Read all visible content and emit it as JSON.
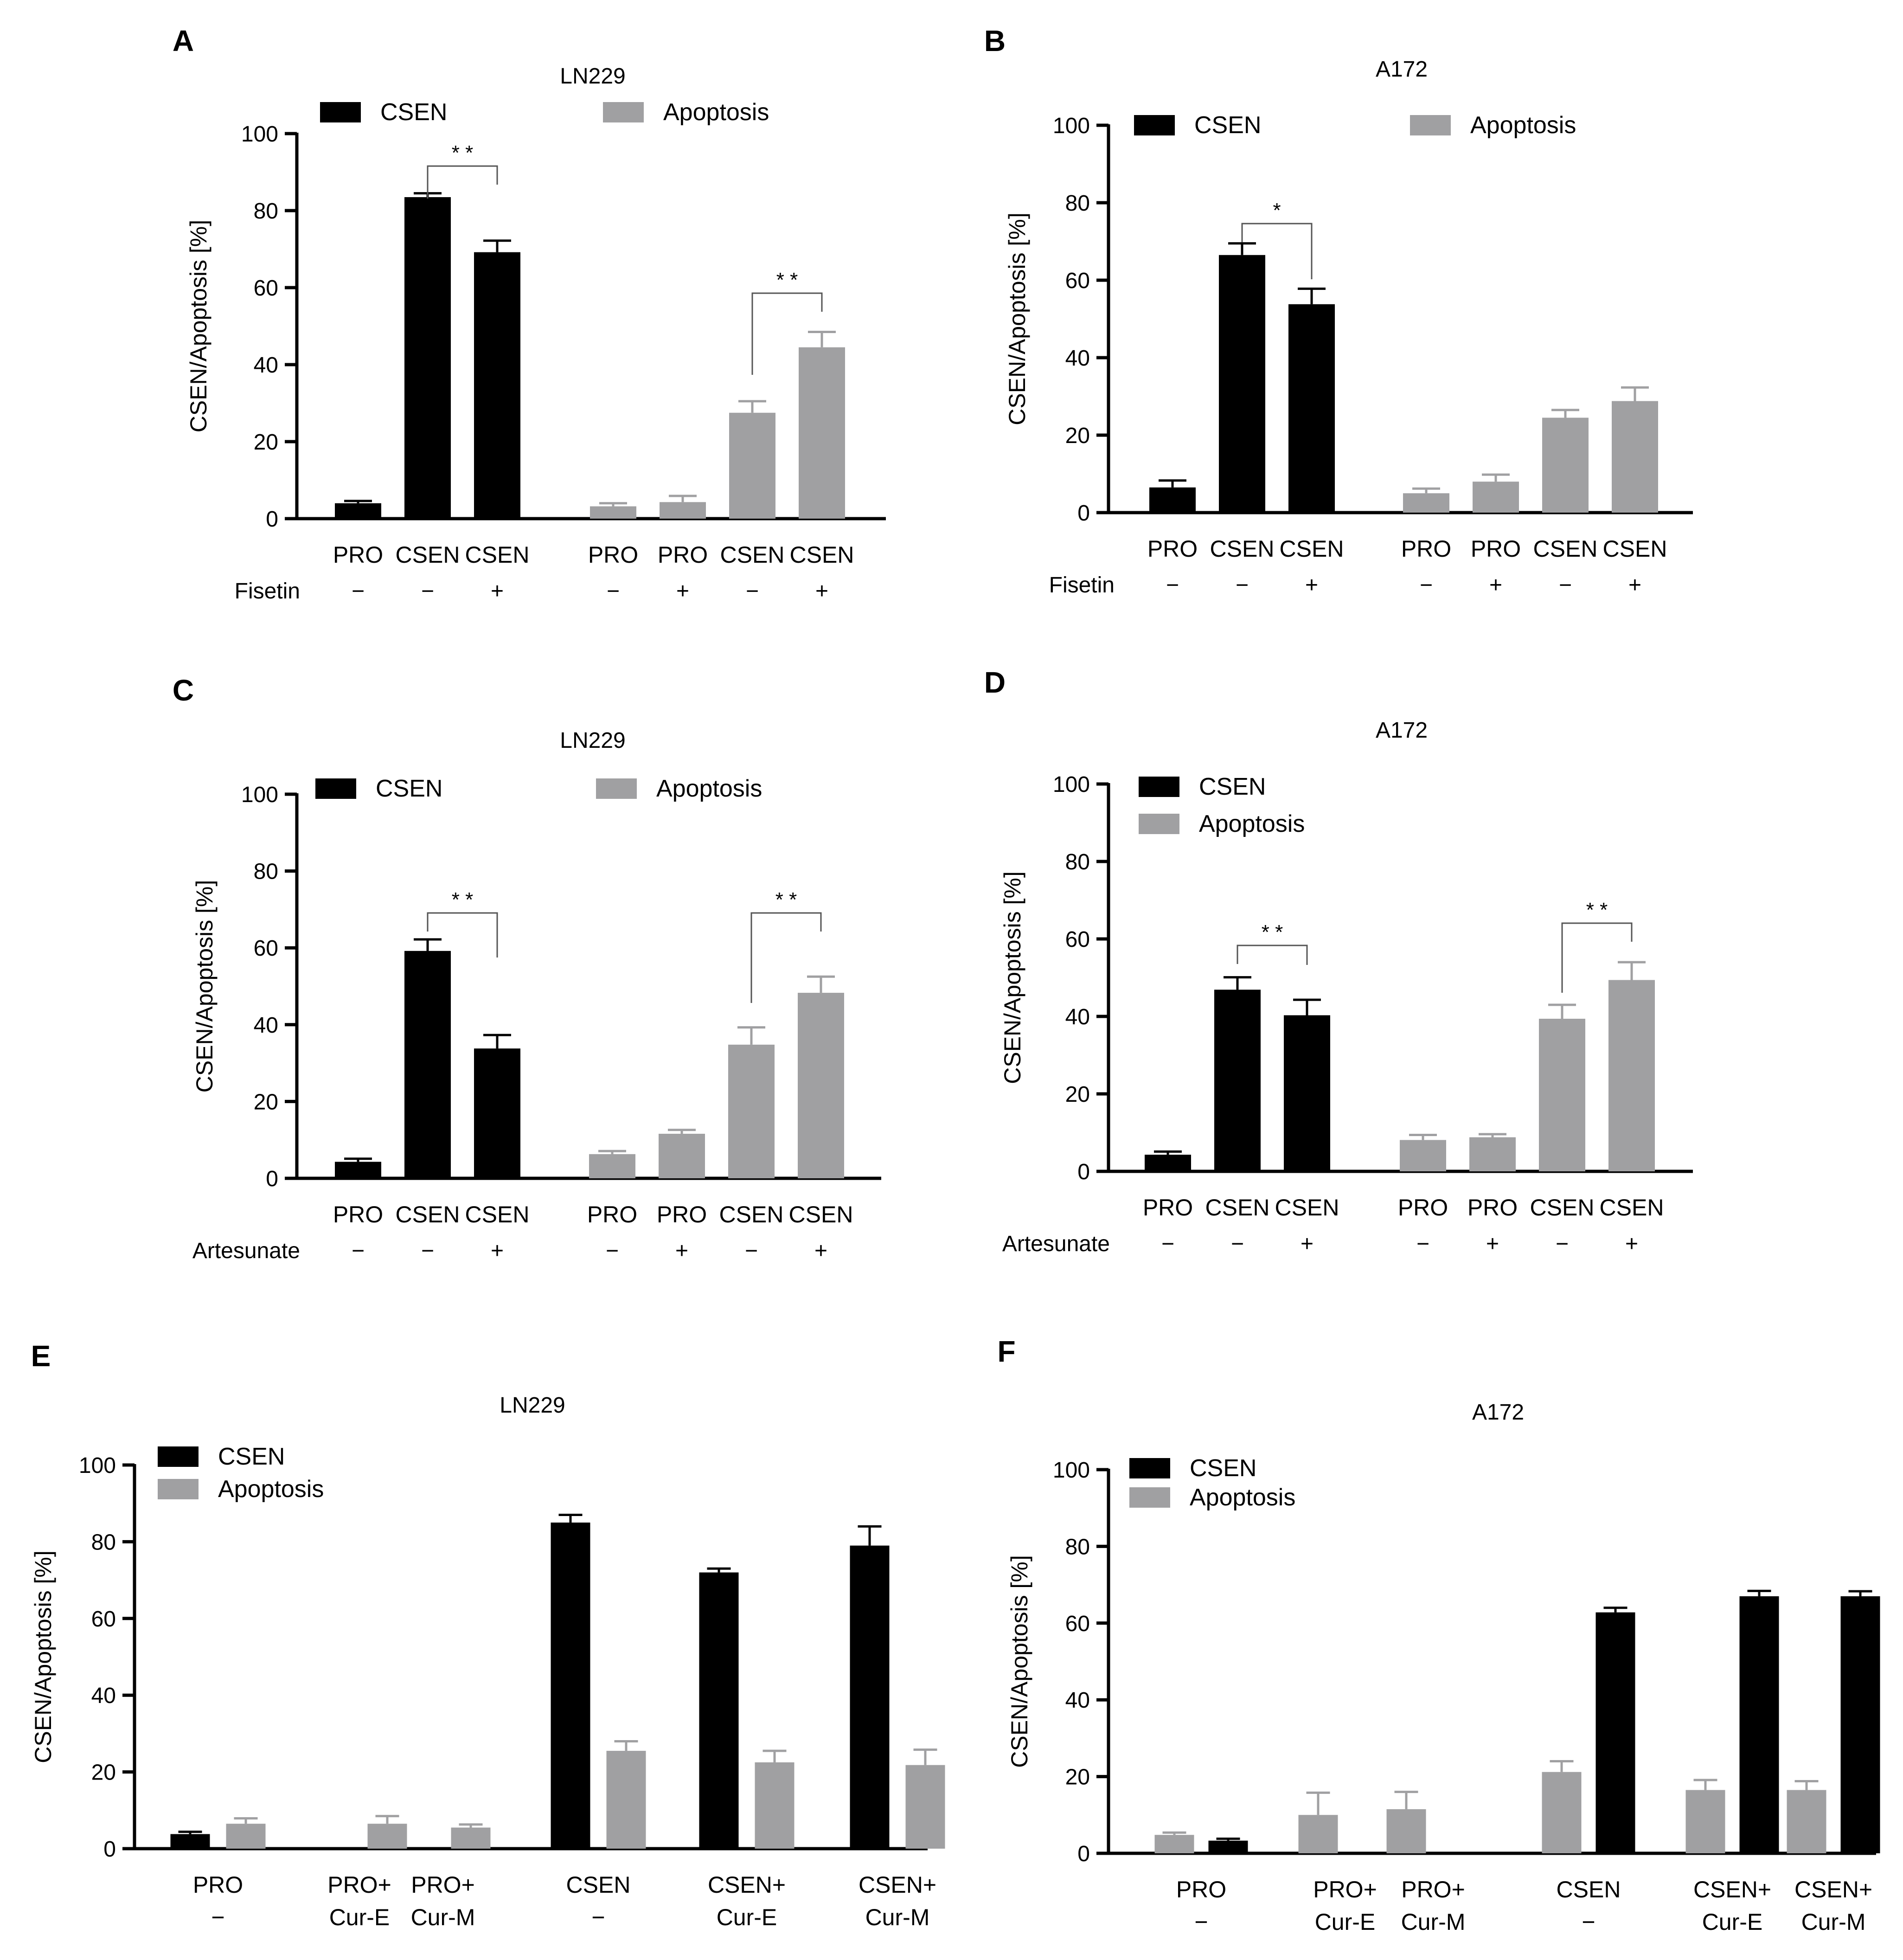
{
  "colors": {
    "csen": "#000000",
    "apoptosis": "#a0a0a2",
    "axis": "#000000",
    "bracket": "#555555"
  },
  "legend": {
    "csen": "CSEN",
    "apoptosis": "Apoptosis"
  },
  "chart_data": [
    {
      "panel": "A",
      "title": "LN229",
      "type": "bar",
      "ylabel": "CSEN/Apoptosis [%]",
      "ylim": [
        0,
        100
      ],
      "yticks": [
        0,
        20,
        40,
        60,
        80,
        100
      ],
      "legend_position": "top",
      "treatment_label": "Fisetin",
      "groups": [
        {
          "series": "CSEN",
          "bars": [
            {
              "category": "PRO",
              "treatment": "−",
              "value": 4,
              "error": 0.6
            },
            {
              "category": "CSEN",
              "treatment": "−",
              "value": 83.5,
              "error": 1
            },
            {
              "category": "CSEN",
              "treatment": "+",
              "value": 69.2,
              "error": 3
            }
          ]
        },
        {
          "series": "Apoptosis",
          "bars": [
            {
              "category": "PRO",
              "treatment": "−",
              "value": 3.2,
              "error": 0.8
            },
            {
              "category": "PRO",
              "treatment": "+",
              "value": 4.3,
              "error": 1.6
            },
            {
              "category": "CSEN",
              "treatment": "−",
              "value": 27.5,
              "error": 3
            },
            {
              "category": "CSEN",
              "treatment": "+",
              "value": 44.5,
              "error": 4
            }
          ]
        }
      ],
      "significance": [
        {
          "label": "* *",
          "from": [
            0,
            1
          ],
          "to": [
            0,
            2
          ]
        },
        {
          "label": "* *",
          "from": [
            1,
            2
          ],
          "to": [
            1,
            3
          ]
        }
      ]
    },
    {
      "panel": "B",
      "title": "A172",
      "type": "bar",
      "ylabel": "CSEN/Apoptosis [%]",
      "ylim": [
        0,
        100
      ],
      "yticks": [
        0,
        20,
        40,
        60,
        80,
        100
      ],
      "legend_position": "top",
      "treatment_label": "Fisetin",
      "groups": [
        {
          "series": "CSEN",
          "bars": [
            {
              "category": "PRO",
              "treatment": "−",
              "value": 6.5,
              "error": 1.8
            },
            {
              "category": "CSEN",
              "treatment": "−",
              "value": 66.5,
              "error": 3
            },
            {
              "category": "CSEN",
              "treatment": "+",
              "value": 53.8,
              "error": 4
            }
          ]
        },
        {
          "series": "Apoptosis",
          "bars": [
            {
              "category": "PRO",
              "treatment": "−",
              "value": 5,
              "error": 1.2
            },
            {
              "category": "PRO",
              "treatment": "+",
              "value": 8,
              "error": 1.8
            },
            {
              "category": "CSEN",
              "treatment": "−",
              "value": 24.5,
              "error": 2
            },
            {
              "category": "CSEN",
              "treatment": "+",
              "value": 28.8,
              "error": 3.5
            }
          ]
        }
      ],
      "significance": [
        {
          "label": "*",
          "from": [
            0,
            1
          ],
          "to": [
            0,
            2
          ]
        }
      ]
    },
    {
      "panel": "C",
      "title": "LN229",
      "type": "bar",
      "ylabel": "CSEN/Apoptosis [%]",
      "ylim": [
        0,
        100
      ],
      "yticks": [
        0,
        20,
        40,
        60,
        80,
        100
      ],
      "legend_position": "top",
      "treatment_label": "Artesunate",
      "groups": [
        {
          "series": "CSEN",
          "bars": [
            {
              "category": "PRO",
              "treatment": "−",
              "value": 4.3,
              "error": 0.8
            },
            {
              "category": "CSEN",
              "treatment": "−",
              "value": 59.2,
              "error": 3
            },
            {
              "category": "CSEN",
              "treatment": "+",
              "value": 33.8,
              "error": 3.5
            }
          ]
        },
        {
          "series": "Apoptosis",
          "bars": [
            {
              "category": "PRO",
              "treatment": "−",
              "value": 6.3,
              "error": 0.8
            },
            {
              "category": "PRO",
              "treatment": "+",
              "value": 11.6,
              "error": 1
            },
            {
              "category": "CSEN",
              "treatment": "−",
              "value": 34.8,
              "error": 4.5
            },
            {
              "category": "CSEN",
              "treatment": "+",
              "value": 48.3,
              "error": 4.2
            }
          ]
        }
      ],
      "significance": [
        {
          "label": "* *",
          "from": [
            0,
            1
          ],
          "to": [
            0,
            2
          ]
        },
        {
          "label": "* *",
          "from": [
            1,
            2
          ],
          "to": [
            1,
            3
          ]
        }
      ]
    },
    {
      "panel": "D",
      "title": "A172",
      "type": "bar",
      "ylabel": "CSEN/Apoptosis [%]",
      "ylim": [
        0,
        100
      ],
      "yticks": [
        0,
        20,
        40,
        60,
        80,
        100
      ],
      "legend_position": "top-left",
      "treatment_label": "Artesunate",
      "groups": [
        {
          "series": "CSEN",
          "bars": [
            {
              "category": "PRO",
              "treatment": "−",
              "value": 4.3,
              "error": 0.8
            },
            {
              "category": "CSEN",
              "treatment": "−",
              "value": 46.9,
              "error": 3.2
            },
            {
              "category": "CSEN",
              "treatment": "+",
              "value": 40.3,
              "error": 4
            }
          ]
        },
        {
          "series": "Apoptosis",
          "bars": [
            {
              "category": "PRO",
              "treatment": "−",
              "value": 8.1,
              "error": 1.3
            },
            {
              "category": "PRO",
              "treatment": "+",
              "value": 8.8,
              "error": 0.8
            },
            {
              "category": "CSEN",
              "treatment": "−",
              "value": 39.4,
              "error": 3.6
            },
            {
              "category": "CSEN",
              "treatment": "+",
              "value": 49.4,
              "error": 4.6
            }
          ]
        }
      ],
      "significance": [
        {
          "label": "* *",
          "from": [
            0,
            1
          ],
          "to": [
            0,
            2
          ]
        },
        {
          "label": "* *",
          "from": [
            1,
            2
          ],
          "to": [
            1,
            3
          ]
        }
      ]
    },
    {
      "panel": "E",
      "title": "LN229",
      "type": "bar",
      "ylabel": "CSEN/Apoptosis [%]",
      "ylim": [
        0,
        100
      ],
      "yticks": [
        0,
        20,
        40,
        60,
        80,
        100
      ],
      "legend_position": "top-left",
      "categories": [
        {
          "line1": "PRO",
          "line2": "−",
          "csen": 3.8,
          "csen_err": 0.6,
          "apoptosis": 6.5,
          "apoptosis_err": 1.4
        },
        {
          "line1": "PRO+",
          "line2": "Cur-E",
          "csen": null,
          "csen_err": null,
          "apoptosis": 6.5,
          "apoptosis_err": 2
        },
        {
          "line1": "PRO+",
          "line2": "Cur-M",
          "csen": null,
          "csen_err": null,
          "apoptosis": 5.5,
          "apoptosis_err": 0.8
        },
        {
          "line1": "CSEN",
          "line2": "−",
          "csen": 85,
          "csen_err": 2,
          "apoptosis": 25.5,
          "apoptosis_err": 2.5
        },
        {
          "line1": "CSEN+",
          "line2": "Cur-E",
          "csen": 72,
          "csen_err": 1,
          "apoptosis": 22.5,
          "apoptosis_err": 3
        },
        {
          "line1": "CSEN+",
          "line2": "Cur-M",
          "csen": 79,
          "csen_err": 5,
          "apoptosis": 21.8,
          "apoptosis_err": 4
        }
      ]
    },
    {
      "panel": "F",
      "title": "A172",
      "type": "bar",
      "ylabel": "CSEN/Apoptosis [%]",
      "ylim": [
        0,
        100
      ],
      "yticks": [
        0,
        20,
        40,
        60,
        80,
        100
      ],
      "legend_position": "top-left",
      "categories": [
        {
          "line1": "PRO",
          "line2": "−",
          "apoptosis": 4.8,
          "apoptosis_err": 0.6,
          "csen": 3.3,
          "csen_err": 0.5
        },
        {
          "line1": "PRO+",
          "line2": "Cur-E",
          "apoptosis": 10,
          "apoptosis_err": 5.8,
          "csen": null,
          "csen_err": null
        },
        {
          "line1": "PRO+",
          "line2": "Cur-M",
          "apoptosis": 11.5,
          "apoptosis_err": 4.5,
          "csen": null,
          "csen_err": null
        },
        {
          "line1": "CSEN",
          "line2": "−",
          "apoptosis": 21.2,
          "apoptosis_err": 2.8,
          "csen": 62.8,
          "csen_err": 1.2
        },
        {
          "line1": "CSEN+",
          "line2": "Cur-E",
          "apoptosis": 16.5,
          "apoptosis_err": 2.6,
          "csen": 67,
          "csen_err": 1.4
        },
        {
          "line1": "CSEN+",
          "line2": "Cur-M",
          "apoptosis": 16.5,
          "apoptosis_err": 2.3,
          "csen": 67,
          "csen_err": 1.3
        }
      ]
    }
  ]
}
